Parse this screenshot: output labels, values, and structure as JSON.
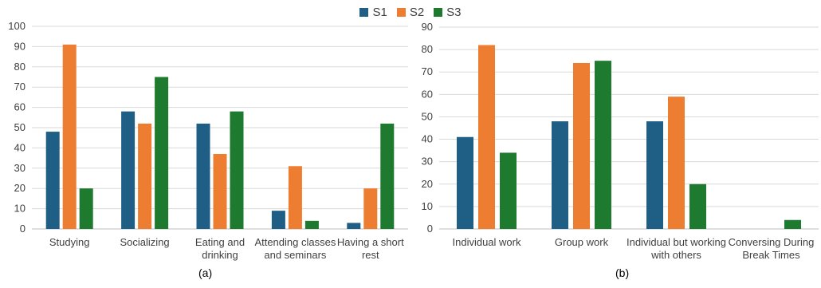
{
  "legend": [
    {
      "name": "S1",
      "color": "#1f5f85"
    },
    {
      "name": "S2",
      "color": "#ed7d31"
    },
    {
      "name": "S3",
      "color": "#1e7a2e"
    }
  ],
  "captions": {
    "a": "(a)",
    "b": "(b)"
  },
  "chart_data": [
    {
      "type": "bar",
      "categories": [
        [
          "Studying"
        ],
        [
          "Socializing"
        ],
        [
          "Eating and",
          "drinking"
        ],
        [
          "Attending classes",
          "and seminars"
        ],
        [
          "Having a short",
          "rest"
        ]
      ],
      "series": [
        {
          "name": "S1",
          "values": [
            48,
            58,
            52,
            9,
            3
          ]
        },
        {
          "name": "S2",
          "values": [
            91,
            52,
            37,
            31,
            20
          ]
        },
        {
          "name": "S3",
          "values": [
            20,
            75,
            58,
            4,
            52
          ]
        }
      ],
      "ylim": [
        0,
        100
      ],
      "yticks": [
        0,
        10,
        20,
        30,
        40,
        50,
        60,
        70,
        80,
        90,
        100
      ],
      "grid": true,
      "legend": "top-center"
    },
    {
      "type": "bar",
      "categories": [
        [
          "Individual work"
        ],
        [
          "Group work"
        ],
        [
          "Individual but working",
          "with others"
        ],
        [
          "Conversing During",
          "Break Times"
        ]
      ],
      "series": [
        {
          "name": "S1",
          "values": [
            41,
            48,
            48,
            0
          ]
        },
        {
          "name": "S2",
          "values": [
            82,
            74,
            59,
            0
          ]
        },
        {
          "name": "S3",
          "values": [
            34,
            75,
            20,
            4
          ]
        }
      ],
      "ylim": [
        0,
        90
      ],
      "yticks": [
        0,
        10,
        20,
        30,
        40,
        50,
        60,
        70,
        80,
        90
      ],
      "grid": true,
      "legend": "top-center"
    }
  ]
}
